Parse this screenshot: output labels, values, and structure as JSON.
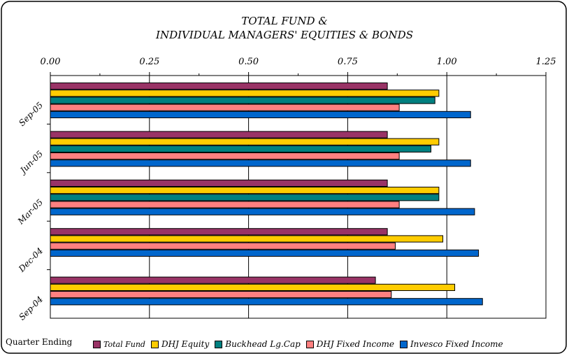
{
  "title_lines": [
    "TOTAL FUND &",
    "INDIVIDUAL MANAGERS' EQUITIES & BONDS"
  ],
  "xaxis_caption": "Quarter Ending",
  "chart_data": {
    "type": "bar",
    "orientation": "horizontal",
    "categories": [
      "Sep-05",
      "Jun-05",
      "Mar-05",
      "Dec-04",
      "Sep-04"
    ],
    "x_ticks": [
      "0.00",
      "0.25",
      "0.50",
      "0.75",
      "1.00",
      "1.25"
    ],
    "xlim": [
      0,
      1.25
    ],
    "grid": true,
    "legend_position": "bottom",
    "series": [
      {
        "name": "Total Fund",
        "color": "#993366",
        "values": [
          0.85,
          0.85,
          0.85,
          0.85,
          0.82
        ]
      },
      {
        "name": "DHJ Equity",
        "color": "#FFCC00",
        "values": [
          0.98,
          0.98,
          0.98,
          0.99,
          1.02
        ]
      },
      {
        "name": "Buckhead Lg.Cap",
        "color": "#008080",
        "values": [
          0.97,
          0.96,
          0.98,
          null,
          null
        ]
      },
      {
        "name": "DHJ Fixed Income",
        "color": "#FF8080",
        "values": [
          0.88,
          0.88,
          0.88,
          0.87,
          0.86
        ]
      },
      {
        "name": "Invesco Fixed Income",
        "color": "#0066CC",
        "values": [
          1.06,
          1.06,
          1.07,
          1.08,
          1.09
        ]
      }
    ]
  }
}
